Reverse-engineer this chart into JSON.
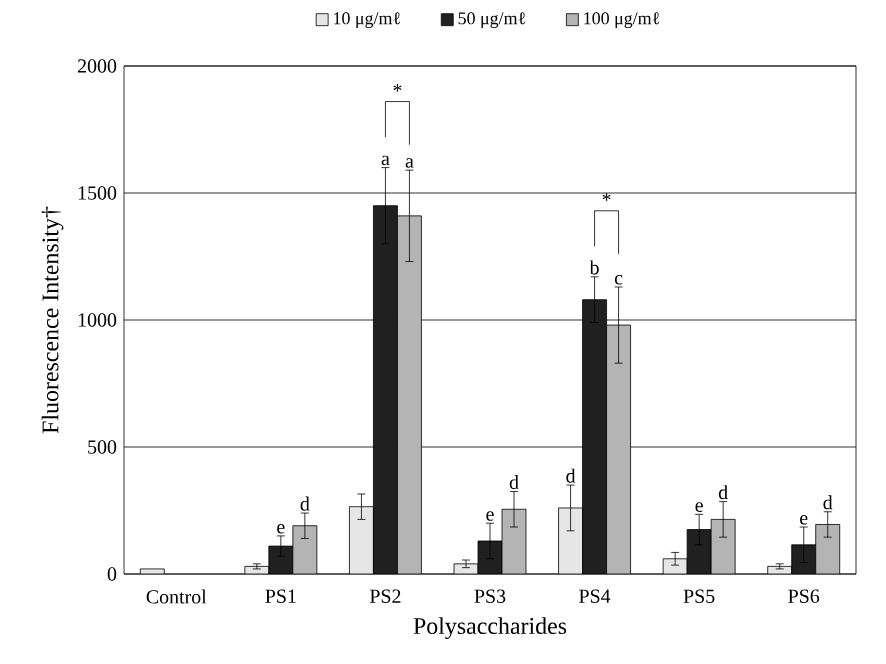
{
  "chart_data": {
    "type": "bar",
    "xlabel": "Polysaccharides",
    "ylabel": "Fluorescence Intensity†",
    "categories": [
      "Control",
      "PS1",
      "PS2",
      "PS3",
      "PS4",
      "PS5",
      "PS6"
    ],
    "series": [
      {
        "name": "10 μg/mℓ",
        "color": "#e6e6e6",
        "values": [
          20,
          30,
          265,
          40,
          260,
          60,
          30
        ],
        "errors": [
          null,
          10,
          50,
          15,
          90,
          25,
          10
        ],
        "value_labels": [
          null,
          null,
          null,
          null,
          "d",
          null,
          null
        ]
      },
      {
        "name": "50 μg/mℓ",
        "color": "#202020",
        "values": [
          null,
          110,
          1450,
          130,
          1080,
          175,
          115
        ],
        "errors": [
          null,
          40,
          150,
          70,
          90,
          60,
          70
        ],
        "value_labels": [
          null,
          "e",
          "a",
          "e",
          "b",
          "e",
          "e"
        ]
      },
      {
        "name": "100 μg/mℓ",
        "color": "#b4b4b4",
        "values": [
          null,
          190,
          1410,
          255,
          980,
          215,
          195
        ],
        "errors": [
          null,
          50,
          180,
          70,
          150,
          70,
          50
        ],
        "value_labels": [
          null,
          "d",
          "a",
          "d",
          "c",
          "d",
          "d"
        ]
      }
    ],
    "ylim": [
      0,
      2000
    ],
    "yticks": [
      0,
      500,
      1000,
      1500,
      2000
    ],
    "grid": "y",
    "legend": "top",
    "annotations": [
      "*",
      "*"
    ]
  }
}
